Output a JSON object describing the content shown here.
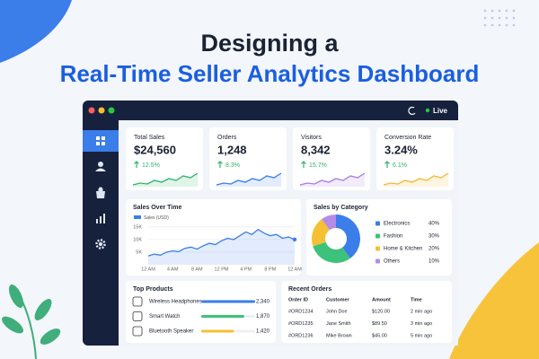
{
  "header": {
    "title_line1": "Designing a",
    "title_line2": "Real-Time Seller Analytics Dashboard"
  },
  "window": {
    "status": "Live"
  },
  "kpis": [
    {
      "label": "Total Sales",
      "value": "$24,560",
      "change": "12.5%",
      "color": "#2fb36b"
    },
    {
      "label": "Orders",
      "value": "1,248",
      "change": "8.3%",
      "color": "#3b7de9"
    },
    {
      "label": "Visitors",
      "value": "8,342",
      "change": "15.7%",
      "color": "#a77be6"
    },
    {
      "label": "Conversion Rate",
      "value": "3.24%",
      "change": "6.1%",
      "color": "#f5b731"
    }
  ],
  "chart_data": [
    {
      "type": "line",
      "title": "Sales Over Time",
      "series": [
        {
          "name": "Sales (USD)",
          "color": "#3b7de9",
          "values": [
            3500,
            4200,
            3800,
            5000,
            5500,
            5200,
            6500,
            7000,
            6200,
            7500,
            8500,
            8000,
            9500,
            10500,
            10000,
            11500,
            13000,
            12000,
            14000,
            12500,
            11500,
            12000,
            10500,
            11000,
            10000
          ]
        }
      ],
      "x_labels": [
        "12 AM",
        "4 AM",
        "8 AM",
        "12 PM",
        "4 PM",
        "8 PM",
        "12 AM"
      ],
      "ylim": [
        0,
        16000
      ],
      "yticks": [
        {
          "value": 5000,
          "label": "5K"
        },
        {
          "value": 10000,
          "label": "10K"
        },
        {
          "value": 15000,
          "label": "15K"
        }
      ]
    },
    {
      "type": "pie",
      "title": "Sales by Category",
      "categories": [
        "Electronics",
        "Fashion",
        "Home & Kitchen",
        "Others"
      ],
      "values": [
        40,
        30,
        20,
        10
      ],
      "value_labels": [
        "40%",
        "30%",
        "20%",
        "10%"
      ],
      "colors": [
        "#3b7de9",
        "#3cc27a",
        "#f5c033",
        "#b48be6"
      ]
    }
  ],
  "top_products": {
    "title": "Top Products",
    "items": [
      {
        "name": "Wireless Headphones",
        "value": 2340,
        "label": "2,340",
        "color": "#3b7de9"
      },
      {
        "name": "Smart Watch",
        "value": 1870,
        "label": "1,870",
        "color": "#3cc27a"
      },
      {
        "name": "Bluetooth Speaker",
        "value": 1420,
        "label": "1,420",
        "color": "#f5c033"
      }
    ]
  },
  "recent_orders": {
    "title": "Recent Orders",
    "columns": [
      "Order ID",
      "Customer",
      "Amount",
      "Time"
    ],
    "rows": [
      [
        "#ORD1234",
        "John Doe",
        "$120.00",
        "2 min ago"
      ],
      [
        "#ORD1235",
        "Jane Smith",
        "$89.50",
        "3 min ago"
      ],
      [
        "#ORD1236",
        "Mike Brown",
        "$45.00",
        "5 min ago"
      ]
    ]
  }
}
